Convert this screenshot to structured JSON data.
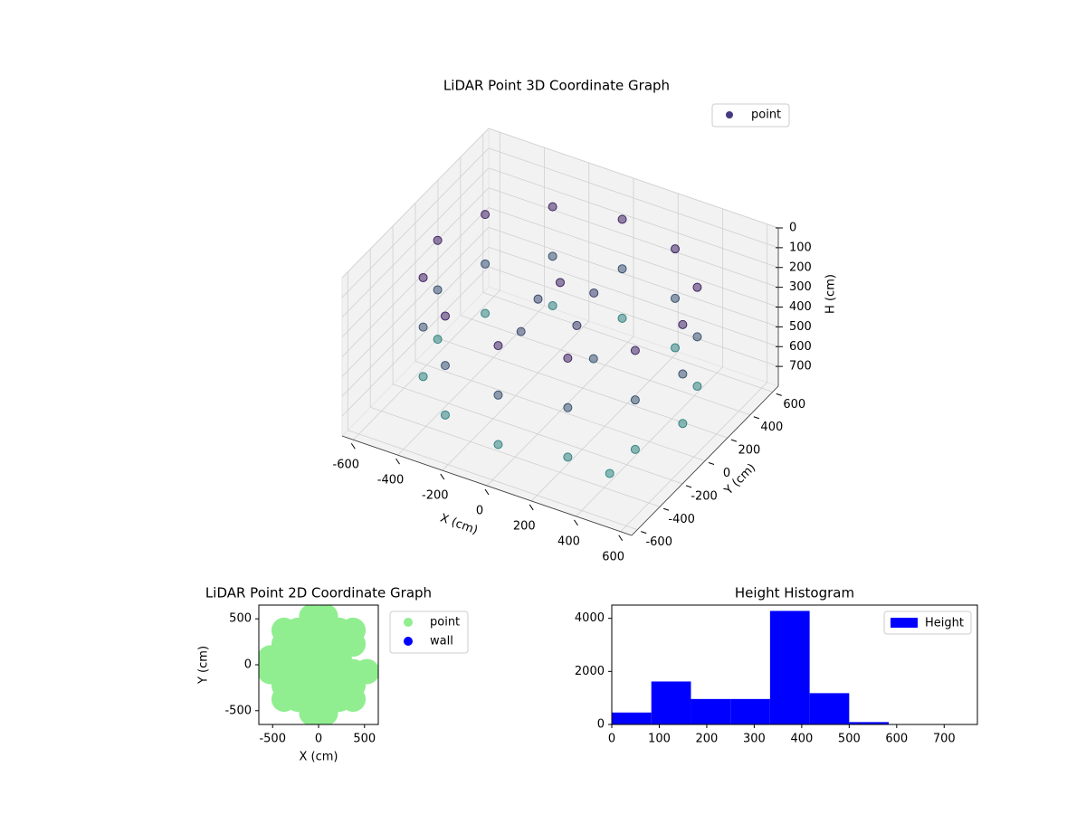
{
  "chart_data": [
    {
      "type": "scatter3d",
      "title": "LiDAR Point 3D Coordinate Graph",
      "xlabel": "X (cm)",
      "ylabel": "Y (cm)",
      "zlabel": "H (cm)",
      "xlim": [
        -650,
        650
      ],
      "ylim": [
        -650,
        650
      ],
      "zlim": [
        0,
        800
      ],
      "z_inverted": true,
      "xticks": [
        -600,
        -400,
        -200,
        0,
        200,
        400,
        600
      ],
      "yticks": [
        -600,
        -400,
        -200,
        0,
        200,
        400,
        600
      ],
      "zticks": [
        0,
        100,
        200,
        300,
        400,
        500,
        600,
        700
      ],
      "grid": true,
      "legend": "upper right",
      "series": [
        {
          "name": "point",
          "color": "#443983",
          "cmap": [
            "#46085c",
            "#2fa08a"
          ],
          "x": [
            550,
            476,
            275,
            0,
            -275,
            -476,
            -550,
            -476,
            -275,
            0,
            275,
            476,
            550,
            476,
            275,
            0,
            -275,
            -476,
            -550,
            -476,
            -275,
            0,
            275,
            476,
            550,
            476,
            275,
            0,
            -275,
            -476,
            -550,
            -476,
            -275,
            0,
            275,
            476,
            0,
            100,
            -150,
            200,
            -100,
            50,
            450
          ],
          "y": [
            0,
            275,
            476,
            550,
            476,
            275,
            0,
            -275,
            -476,
            -550,
            -476,
            -275,
            0,
            275,
            476,
            550,
            476,
            275,
            0,
            -275,
            -476,
            -550,
            -476,
            -275,
            0,
            275,
            476,
            550,
            476,
            275,
            0,
            -275,
            -476,
            -550,
            -476,
            -275,
            0,
            -50,
            100,
            -100,
            -150,
            200,
            -450
          ],
          "z": [
            150,
            150,
            150,
            150,
            150,
            150,
            150,
            150,
            150,
            150,
            150,
            150,
            400,
            400,
            400,
            400,
            400,
            400,
            400,
            400,
            400,
            400,
            400,
            400,
            650,
            650,
            650,
            650,
            650,
            650,
            650,
            650,
            650,
            650,
            650,
            650,
            150,
            300,
            350,
            400,
            350,
            300,
            680
          ]
        }
      ]
    },
    {
      "type": "scatter",
      "title": "LiDAR Point 2D Coordinate Graph",
      "xlabel": "X (cm)",
      "ylabel": "Y (cm)",
      "xlim": [
        -650,
        650
      ],
      "ylim": [
        -650,
        650
      ],
      "xticks": [
        -500,
        0,
        500
      ],
      "yticks": [
        -500,
        0,
        500
      ],
      "legend": "outside upper right",
      "series": [
        {
          "name": "point",
          "color": "#90ee90",
          "x": [
            75,
            75,
            75,
            75,
            225,
            225,
            225,
            375,
            375,
            75,
            75,
            75,
            75,
            225,
            225,
            225,
            375,
            375,
            375,
            525,
            -75,
            -75,
            -75,
            -75,
            -225,
            -225,
            -225,
            -375,
            -375,
            -375,
            -525,
            -75,
            -75,
            -75,
            -75,
            -225,
            -225,
            -225,
            -375,
            -375,
            -375,
            -525
          ],
          "y": [
            75,
            225,
            375,
            525,
            75,
            225,
            375,
            225,
            375,
            -75,
            -225,
            -375,
            -525,
            -75,
            -225,
            -375,
            -75,
            -225,
            -375,
            -75,
            75,
            225,
            375,
            525,
            75,
            225,
            375,
            75,
            225,
            375,
            75,
            -75,
            -225,
            -375,
            -525,
            -75,
            -225,
            -375,
            -75,
            -225,
            -375,
            -75
          ]
        },
        {
          "name": "wall",
          "color": "#0000ff",
          "x": [],
          "y": []
        }
      ]
    },
    {
      "type": "histogram",
      "title": "Height Histogram",
      "bins": [
        0,
        83.3,
        166.7,
        250,
        333.3,
        416.7,
        500,
        583.3,
        666.7,
        750
      ],
      "xlim": [
        0,
        770
      ],
      "ylim": [
        0,
        4500
      ],
      "xticks": [
        0,
        100,
        200,
        300,
        400,
        500,
        600,
        700
      ],
      "yticks": [
        0,
        2000,
        4000
      ],
      "legend": "upper right",
      "series": [
        {
          "name": "Height",
          "color": "#0000ff",
          "values": [
            450,
            1620,
            960,
            960,
            4280,
            1180,
            90,
            10,
            5
          ]
        }
      ]
    }
  ]
}
